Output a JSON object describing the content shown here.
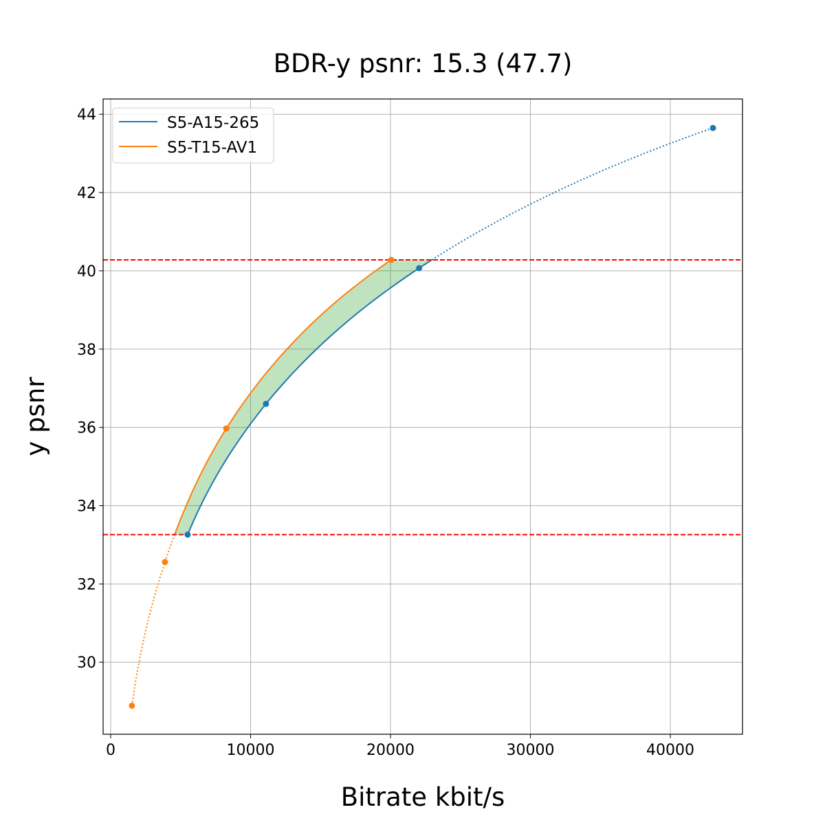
{
  "chart_data": {
    "type": "line",
    "title": "BDR-y psnr: 15.3 (47.7)",
    "xlabel": "Bitrate kbit/s",
    "ylabel": "y psnr",
    "xlim": [
      -541,
      45160
    ],
    "ylim": [
      28.16,
      44.39
    ],
    "xticks": [
      0,
      10000,
      20000,
      30000,
      40000
    ],
    "yticks": [
      30,
      32,
      34,
      36,
      38,
      40,
      42,
      44
    ],
    "grid": true,
    "legend_position": "top-left",
    "series": [
      {
        "name": "S5-A15-265",
        "color": "#1f77b4",
        "x": [
          5500,
          11100,
          22050,
          43050
        ],
        "y": [
          33.26,
          36.6,
          40.07,
          43.65
        ]
      },
      {
        "name": "S5-T15-AV1",
        "color": "#ff7f0e",
        "x": [
          1520,
          3880,
          8260,
          20050
        ],
        "y": [
          28.89,
          32.56,
          35.97,
          40.28
        ]
      }
    ],
    "reference_lines": {
      "color": "#ff0000",
      "y": [
        40.28,
        33.26
      ]
    },
    "fill_color": "#2ca02c"
  }
}
